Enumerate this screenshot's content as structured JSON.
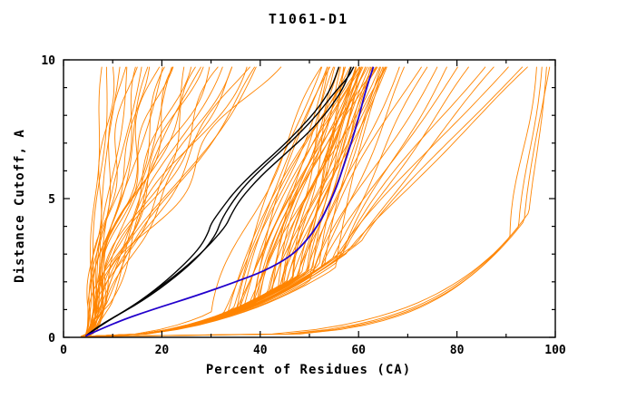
{
  "chart_data": {
    "type": "line",
    "title": "T1061-D1",
    "xlabel": "Percent of Residues (CA)",
    "ylabel": "Distance Cutoff, A",
    "xlim": [
      0,
      100
    ],
    "ylim": [
      0,
      10
    ],
    "x_ticks": [
      0,
      20,
      40,
      60,
      80,
      100
    ],
    "x_minor_step": 10,
    "y_ticks": [
      0,
      5,
      10
    ],
    "y_minor_step": 1,
    "grid": false,
    "legend": "none",
    "colors": {
      "model_curves": "#ff8400",
      "highlight_curves": "#000000",
      "reference_curve": "#2200cc",
      "frame": "#000000",
      "background": "#ffffff"
    },
    "curve_start_y": 0.12,
    "curve_end_y": 9.75,
    "orange_curves_params_ttop_xknee_yknee_pow_amp_freq_phase": [
      [
        8,
        5,
        0.4,
        0.45,
        0.4,
        1.2,
        0.3
      ],
      [
        9,
        5.5,
        0.35,
        0.45,
        0.6,
        0.9,
        1.1
      ],
      [
        10,
        5,
        0.5,
        0.45,
        0.8,
        1.4,
        2.0
      ],
      [
        11,
        6,
        0.4,
        0.45,
        0.5,
        0.7,
        0.6
      ],
      [
        12,
        5.5,
        0.45,
        0.45,
        1.0,
        1.1,
        2.6
      ],
      [
        13,
        6,
        0.5,
        0.45,
        0.7,
        0.8,
        1.8
      ],
      [
        14,
        5,
        0.4,
        0.45,
        1.2,
        1.3,
        0.9
      ],
      [
        15,
        6.5,
        0.5,
        0.45,
        0.9,
        0.6,
        2.2
      ],
      [
        16,
        5.5,
        0.35,
        0.45,
        1.4,
        1.0,
        1.5
      ],
      [
        17,
        6,
        0.6,
        0.45,
        0.6,
        1.5,
        0.2
      ],
      [
        18,
        5,
        0.5,
        0.45,
        1.1,
        0.9,
        2.9
      ],
      [
        19,
        6.5,
        0.4,
        0.45,
        1.6,
        1.2,
        1.2
      ],
      [
        20,
        5.5,
        0.55,
        0.45,
        0.8,
        0.7,
        2.4
      ],
      [
        21,
        6,
        0.45,
        0.45,
        1.3,
        1.4,
        0.5
      ],
      [
        22,
        5,
        0.5,
        0.45,
        1.8,
        1.0,
        1.9
      ],
      [
        23,
        6.5,
        0.6,
        0.45,
        1.0,
        0.8,
        3.0
      ],
      [
        24,
        5.5,
        0.4,
        0.45,
        2.0,
        1.1,
        0.8
      ],
      [
        25,
        6,
        0.5,
        0.45,
        1.2,
        1.3,
        2.1
      ],
      [
        26,
        5,
        0.45,
        0.45,
        2.2,
        0.9,
        1.4
      ],
      [
        27,
        6.5,
        0.55,
        0.45,
        1.5,
        1.2,
        2.7
      ],
      [
        28,
        5.5,
        0.5,
        0.45,
        1.0,
        0.6,
        0.4
      ],
      [
        29,
        6,
        0.4,
        0.45,
        2.4,
        1.0,
        1.7
      ],
      [
        30,
        5,
        0.6,
        0.45,
        1.3,
        1.4,
        2.3
      ],
      [
        31,
        6.5,
        0.45,
        0.45,
        1.7,
        0.8,
        0.7
      ],
      [
        33,
        5.5,
        0.5,
        0.45,
        2.1,
        1.1,
        1.0
      ],
      [
        34,
        6,
        0.55,
        0.45,
        1.1,
        1.3,
        2.8
      ],
      [
        36,
        5,
        0.4,
        0.45,
        2.5,
        0.9,
        0.1
      ],
      [
        37,
        6.5,
        0.5,
        0.45,
        1.4,
        1.2,
        1.6
      ],
      [
        39,
        5.5,
        0.45,
        0.45,
        1.9,
        0.7,
        2.5
      ],
      [
        40,
        6,
        0.6,
        0.45,
        1.2,
        1.0,
        0.9
      ],
      [
        42,
        5,
        0.5,
        0.45,
        2.3,
        1.3,
        1.3
      ],
      [
        35,
        7,
        0.35,
        0.45,
        0.9,
        1.5,
        2.0
      ],
      [
        52,
        34,
        1.0,
        0.45,
        0.6,
        0.8,
        0.5
      ],
      [
        53,
        38,
        1.3,
        0.45,
        0.8,
        0.6,
        1.4
      ],
      [
        53,
        30,
        0.9,
        0.45,
        1.0,
        1.0,
        2.2
      ],
      [
        54,
        42,
        1.6,
        0.45,
        0.5,
        0.9,
        0.8
      ],
      [
        54,
        36,
        1.1,
        0.45,
        1.2,
        0.7,
        2.9
      ],
      [
        55,
        45,
        1.9,
        0.45,
        0.7,
        1.1,
        1.7
      ],
      [
        55,
        32,
        0.8,
        0.45,
        0.9,
        0.5,
        0.3
      ],
      [
        56,
        40,
        1.4,
        0.45,
        1.1,
        0.8,
        2.5
      ],
      [
        56,
        47,
        2.1,
        0.45,
        0.6,
        1.2,
        1.1
      ],
      [
        57,
        35,
        1.0,
        0.45,
        1.3,
        0.6,
        1.9
      ],
      [
        57,
        43,
        1.7,
        0.45,
        0.8,
        1.0,
        0.6
      ],
      [
        57,
        50,
        2.4,
        0.45,
        0.5,
        0.7,
        2.7
      ],
      [
        58,
        38,
        1.2,
        0.45,
        1.0,
        0.9,
        1.5
      ],
      [
        58,
        46,
        2.0,
        0.45,
        0.7,
        1.1,
        0.2
      ],
      [
        58,
        33,
        0.9,
        0.45,
        1.4,
        0.5,
        2.3
      ],
      [
        59,
        41,
        1.5,
        0.45,
        0.9,
        0.8,
        1.0
      ],
      [
        59,
        48,
        2.2,
        0.45,
        0.6,
        1.2,
        2.8
      ],
      [
        59,
        36,
        1.1,
        0.45,
        1.2,
        0.6,
        1.8
      ],
      [
        60,
        44,
        1.8,
        0.45,
        0.8,
        1.0,
        0.4
      ],
      [
        60,
        51,
        2.5,
        0.45,
        0.5,
        0.7,
        2.0
      ],
      [
        60,
        39,
        1.3,
        0.45,
        1.1,
        0.9,
        1.2
      ],
      [
        60,
        47,
        2.1,
        0.45,
        0.7,
        1.1,
        3.0
      ],
      [
        61,
        34,
        1.0,
        0.45,
        1.3,
        0.5,
        0.7
      ],
      [
        61,
        42,
        1.6,
        0.45,
        0.9,
        0.8,
        2.4
      ],
      [
        61,
        49,
        2.3,
        0.45,
        0.6,
        1.2,
        1.6
      ],
      [
        61,
        37,
        1.2,
        0.45,
        1.0,
        0.6,
        0.1
      ],
      [
        62,
        45,
        1.9,
        0.45,
        0.8,
        1.0,
        2.6
      ],
      [
        62,
        52,
        2.6,
        0.45,
        0.5,
        0.7,
        1.3
      ],
      [
        62,
        40,
        1.4,
        0.45,
        1.1,
        0.9,
        2.1
      ],
      [
        62,
        48,
        2.2,
        0.45,
        0.7,
        1.1,
        0.9
      ],
      [
        63,
        35,
        1.0,
        0.45,
        1.2,
        0.5,
        1.9
      ],
      [
        63,
        43,
        1.7,
        0.45,
        0.8,
        0.8,
        2.9
      ],
      [
        63,
        50,
        2.4,
        0.45,
        0.6,
        1.2,
        0.5
      ],
      [
        63,
        38,
        1.3,
        0.45,
        1.0,
        0.6,
        1.5
      ],
      [
        64,
        46,
        2.0,
        0.45,
        0.7,
        1.0,
        2.3
      ],
      [
        64,
        53,
        2.6,
        0.45,
        0.5,
        0.7,
        1.1
      ],
      [
        64,
        41,
        1.5,
        0.45,
        0.9,
        0.9,
        0.3
      ],
      [
        65,
        48,
        2.2,
        0.45,
        0.6,
        1.1,
        2.7
      ],
      [
        65,
        44,
        1.8,
        0.45,
        0.8,
        0.8,
        1.7
      ],
      [
        65,
        55,
        2.5,
        0.45,
        0.4,
        0.6,
        0.8
      ],
      [
        66,
        50,
        2.3,
        0.45,
        0.6,
        1.0,
        2.0
      ],
      [
        66,
        45,
        1.9,
        0.45,
        0.7,
        0.9,
        1.0
      ],
      [
        68,
        50,
        2.2,
        0.45,
        0.8,
        0.8,
        1.2
      ],
      [
        70,
        53,
        2.5,
        0.45,
        0.7,
        0.9,
        2.1
      ],
      [
        72,
        49,
        2.0,
        0.45,
        1.0,
        0.7,
        0.4
      ],
      [
        74,
        55,
        2.8,
        0.45,
        0.6,
        1.0,
        2.8
      ],
      [
        76,
        51,
        2.3,
        0.45,
        0.9,
        0.8,
        1.6
      ],
      [
        78,
        57,
        3.0,
        0.45,
        0.7,
        0.9,
        0.7
      ],
      [
        80,
        53,
        2.5,
        0.45,
        0.8,
        0.7,
        2.4
      ],
      [
        83,
        58,
        3.2,
        0.45,
        0.6,
        1.0,
        1.3
      ],
      [
        85,
        55,
        2.7,
        0.45,
        0.8,
        0.8,
        0.2
      ],
      [
        88,
        60,
        3.4,
        0.45,
        0.5,
        0.9,
        2.6
      ],
      [
        90,
        56,
        2.9,
        0.45,
        0.7,
        0.7,
        1.8
      ],
      [
        93,
        61,
        3.5,
        0.45,
        0.5,
        0.8,
        0.9
      ],
      [
        95,
        58,
        3.0,
        0.45,
        0.6,
        0.9,
        2.2
      ],
      [
        97,
        93,
        4.0,
        0.22,
        0.5,
        0.8,
        1.0
      ],
      [
        98,
        95,
        4.5,
        0.2,
        0.4,
        0.7,
        2.0
      ],
      [
        96,
        91,
        3.6,
        0.24,
        0.6,
        0.9,
        0.3
      ],
      [
        98.5,
        94,
        4.2,
        0.21,
        0.4,
        0.6,
        1.5
      ]
    ],
    "black_curves_points": [
      [
        [
          4.5,
          0.05
        ],
        [
          8,
          0.5
        ],
        [
          14,
          1.1
        ],
        [
          20,
          1.9
        ],
        [
          25,
          2.7
        ],
        [
          28,
          3.3
        ],
        [
          29.5,
          3.8
        ],
        [
          30,
          4.1
        ],
        [
          32,
          4.6
        ],
        [
          35,
          5.3
        ],
        [
          39,
          6.0
        ],
        [
          44,
          6.8
        ],
        [
          48,
          7.5
        ],
        [
          52,
          8.3
        ],
        [
          54.5,
          9.0
        ],
        [
          56,
          9.75
        ]
      ],
      [
        [
          4.5,
          0.05
        ],
        [
          9,
          0.6
        ],
        [
          16,
          1.3
        ],
        [
          23,
          2.2
        ],
        [
          28,
          3.0
        ],
        [
          31,
          3.7
        ],
        [
          32,
          4.2
        ],
        [
          34,
          4.8
        ],
        [
          37,
          5.5
        ],
        [
          41,
          6.2
        ],
        [
          46,
          7.0
        ],
        [
          51,
          7.9
        ],
        [
          55,
          8.8
        ],
        [
          58,
          9.4
        ],
        [
          59,
          9.75
        ]
      ],
      [
        [
          4.5,
          0.05
        ],
        [
          7,
          0.4
        ],
        [
          12,
          0.9
        ],
        [
          18,
          1.6
        ],
        [
          24,
          2.4
        ],
        [
          29,
          3.2
        ],
        [
          33,
          4.0
        ],
        [
          34,
          4.4
        ],
        [
          36,
          5.0
        ],
        [
          40,
          5.8
        ],
        [
          45,
          6.6
        ],
        [
          50,
          7.4
        ],
        [
          54,
          8.2
        ],
        [
          57,
          9.0
        ],
        [
          58.5,
          9.75
        ]
      ]
    ],
    "blue_curve_points": [
      [
        4.5,
        0.05
      ],
      [
        10,
        0.5
      ],
      [
        18,
        1.0
      ],
      [
        27,
        1.5
      ],
      [
        35,
        2.0
      ],
      [
        41,
        2.4
      ],
      [
        46,
        2.9
      ],
      [
        49,
        3.4
      ],
      [
        52,
        4.1
      ],
      [
        54,
        4.8
      ],
      [
        55.5,
        5.4
      ],
      [
        57,
        6.2
      ],
      [
        58.5,
        7.0
      ],
      [
        60,
        7.9
      ],
      [
        61,
        8.6
      ],
      [
        62,
        9.2
      ],
      [
        63,
        9.75
      ]
    ]
  }
}
